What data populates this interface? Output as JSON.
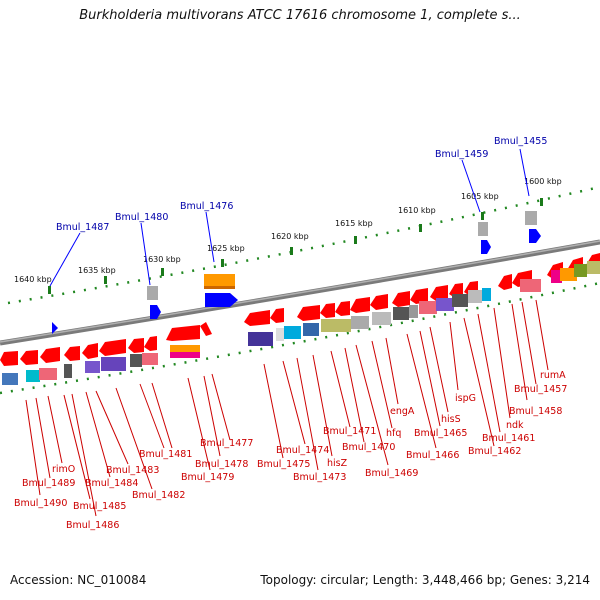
{
  "title": "Burkholderia multivorans ATCC 17616 chromosome 1, complete s...",
  "footer": {
    "accession": "Accession: NC_010084",
    "topology": "Topology: circular; Length: 3,448,466 bp; Genes: 3,214"
  },
  "scale_labels": [
    "1640 kbp",
    "1635 kbp",
    "1630 kbp",
    "1625 kbp",
    "1620 kbp",
    "1615 kbp",
    "1610 kbp",
    "1605 kbp",
    "1600 kbp"
  ],
  "top_gene_labels": [
    "Bmul_1487",
    "Bmul_1480",
    "Bmul_1476",
    "Bmul_1459",
    "Bmul_1455"
  ],
  "bottom_gene_labels": [
    "rimO",
    "Bmul_1489",
    "Bmul_1490",
    "Bmul_1485",
    "Bmul_1486",
    "Bmul_1484",
    "Bmul_1483",
    "Bmul_1482",
    "Bmul_1481",
    "Bmul_1479",
    "Bmul_1478",
    "Bmul_1477",
    "Bmul_1475",
    "Bmul_1474",
    "Bmul_1473",
    "hisZ",
    "Bmul_1471",
    "Bmul_1470",
    "Bmul_1469",
    "hfq",
    "engA",
    "Bmul_1466",
    "Bmul_1465",
    "hisS",
    "ispG",
    "Bmul_1462",
    "Bmul_1461",
    "ndk",
    "Bmul_1458",
    "Bmul_1457",
    "rumA"
  ],
  "colors": {
    "backbone": "#808080",
    "forward_gene": "#ff0000",
    "ruler": "#228822",
    "top_label": "#0000aa",
    "bottom_label": "#cc0000",
    "strand_blue": "#0000ff",
    "highlight_orange": "#ff9900"
  }
}
